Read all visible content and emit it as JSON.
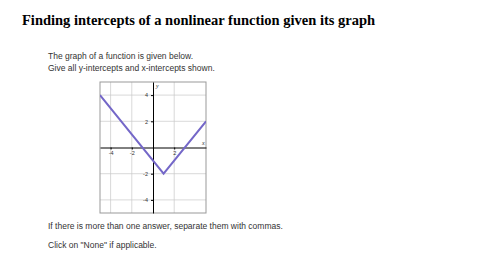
{
  "header": {
    "title": "Finding intercepts of a nonlinear function given its graph"
  },
  "body": {
    "lines": [
      "The graph of a function is given below.",
      "Give all y-intercepts and x-intercepts shown."
    ],
    "footer": [
      "If there is more than one answer, separate them with commas.",
      "Click on \"None\" if applicable."
    ]
  },
  "chart_data": {
    "type": "line",
    "x": [
      -5,
      1,
      5
    ],
    "values": [
      4,
      -2,
      2
    ],
    "color": "#7467c8",
    "xlim": [
      -5,
      5
    ],
    "ylim": [
      -5,
      5
    ],
    "xticks": [
      -4,
      -2,
      2
    ],
    "yticks": [
      -4,
      -2,
      2,
      4
    ],
    "grid": true,
    "x_label": "x",
    "y_label": "y"
  }
}
